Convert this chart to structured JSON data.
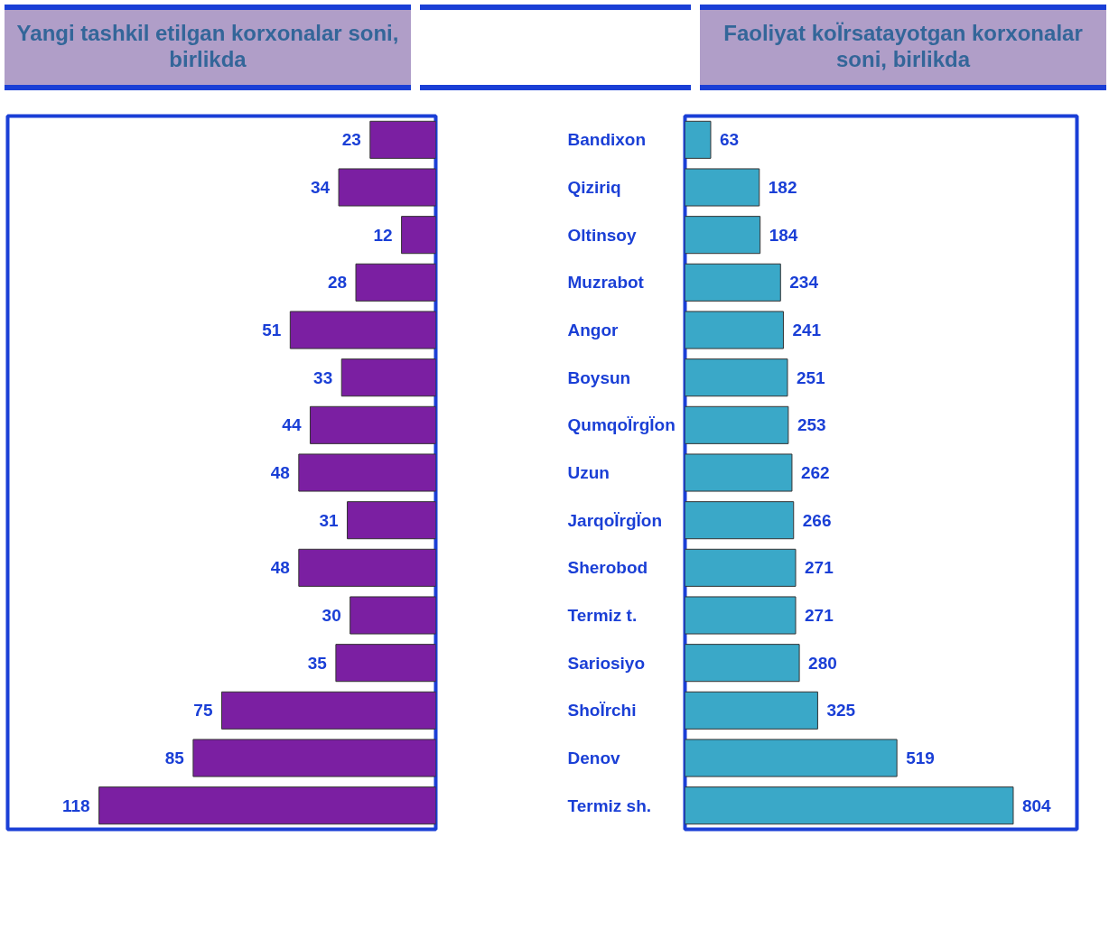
{
  "chart_data": [
    {
      "type": "bar",
      "orientation": "horizontal",
      "title": "Yangi tashkil etilgan korxonalar soni, birlikda",
      "categories": [
        "Bandixon",
        "Qiziriq",
        "Oltinsoy",
        "Muzrabot",
        "Angor",
        "Boysun",
        "QumqoÏrgÏon",
        "Uzun",
        "JarqoÏrgÏon",
        "Sherobod",
        "Termiz t.",
        "Sariosiyo",
        "ShoÏrchi",
        "Denov",
        "Termiz sh."
      ],
      "values": [
        23,
        34,
        12,
        28,
        51,
        33,
        44,
        48,
        31,
        48,
        30,
        35,
        75,
        85,
        118
      ],
      "color": "#7b1fa2",
      "xlim": [
        150,
        0
      ],
      "data_labels": true,
      "tick_labels": "y",
      "grid": false
    },
    {
      "type": "bar",
      "orientation": "horizontal",
      "title": "Faoliyat koÏrsatayotgan korxonalar soni, birlikda",
      "categories": [
        null,
        null,
        null,
        null,
        null,
        null,
        null,
        null,
        null,
        null,
        null,
        null,
        null,
        null,
        null
      ],
      "values": [
        63,
        182,
        184,
        234,
        241,
        251,
        253,
        262,
        266,
        271,
        271,
        280,
        325,
        519,
        804
      ],
      "color": "#3aa8c8",
      "xlim": [
        0,
        960
      ],
      "data_labels": true,
      "tick_labels": false,
      "grid": false
    }
  ]
}
